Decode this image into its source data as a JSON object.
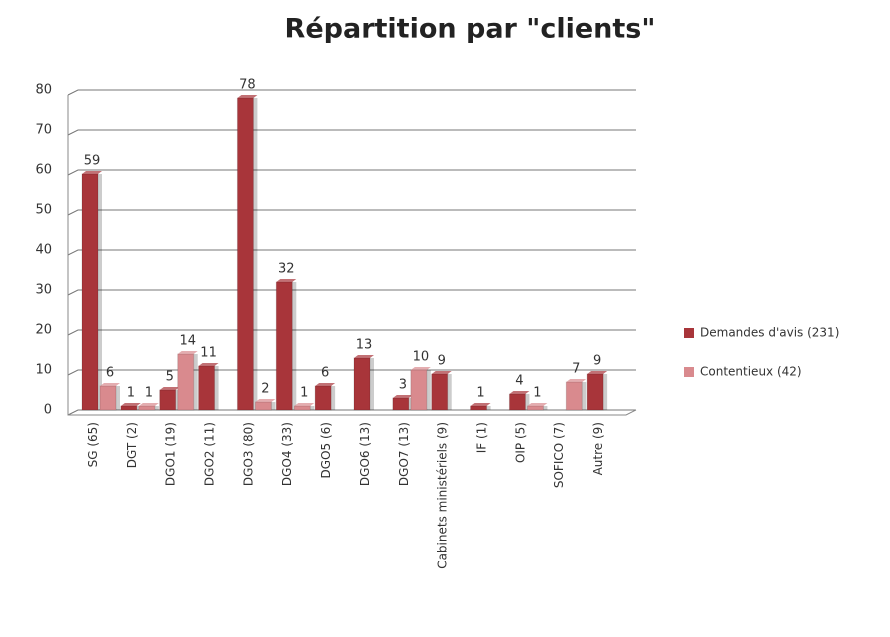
{
  "chart_data": {
    "type": "bar",
    "title": "Répartition par \"clients\"",
    "categories": [
      "SG (65)",
      "DGT (2)",
      "DGO1 (19)",
      "DGO2 (11)",
      "DGO3 (80)",
      "DGO4 (33)",
      "DGO5 (6)",
      "DGO6 (13)",
      "DGO7 (13)",
      "Cabinets ministériels (9)",
      "IF (1)",
      "OIP (5)",
      "SOFICO (7)",
      "Autre (9)"
    ],
    "series": [
      {
        "name": "Demandes d'avis (231)",
        "color": "#a8353a",
        "values": [
          59,
          1,
          5,
          11,
          78,
          32,
          6,
          13,
          3,
          9,
          1,
          4,
          null,
          9
        ]
      },
      {
        "name": "Contentieux (42)",
        "color": "#d98a8e",
        "values": [
          6,
          1,
          14,
          null,
          2,
          1,
          null,
          null,
          10,
          null,
          null,
          1,
          7,
          null
        ]
      }
    ],
    "ylim": [
      0,
      80
    ],
    "yticks": [
      0,
      10,
      20,
      30,
      40,
      50,
      60,
      70,
      80
    ],
    "grid": true,
    "legend": "right"
  }
}
